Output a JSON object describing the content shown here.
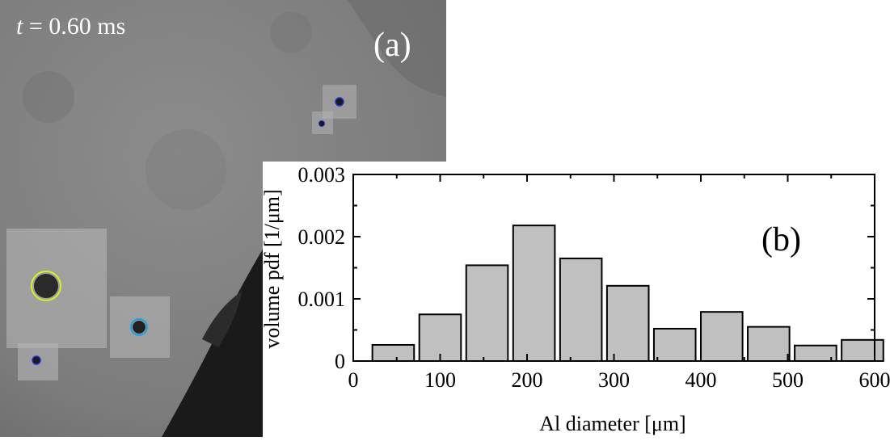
{
  "panel_a": {
    "time_var": "t",
    "time_rest": " = 0.60 ms",
    "label": "(a)",
    "colors": {
      "particle_blue": "#2430d8",
      "particle_cyan": "#1aa0e6",
      "particle_yellow": "#d8f020"
    }
  },
  "chart_data": {
    "type": "bar",
    "label": "(b)",
    "xlabel": "Al diameter [μm]",
    "ylabel": "volume pdf [1/μm]",
    "xlim": [
      0,
      600
    ],
    "ylim": [
      0,
      0.003
    ],
    "xticks": [
      0,
      100,
      200,
      300,
      400,
      500,
      600
    ],
    "yticks": [
      0,
      0.001,
      0.002,
      0.003
    ],
    "xtick_labels": [
      "0",
      "100",
      "200",
      "300",
      "400",
      "500",
      "600"
    ],
    "ytick_labels": [
      "0",
      "0.001",
      "0.002",
      "0.003"
    ],
    "bin_width": 48,
    "bin_centers": [
      46,
      100,
      154,
      208,
      262,
      316,
      370,
      424,
      478,
      532,
      586
    ],
    "values": [
      0.00026,
      0.00075,
      0.00154,
      0.00218,
      0.00165,
      0.00121,
      0.00052,
      0.00079,
      0.00055,
      0.00025,
      0.00034
    ],
    "bar_color": "#c0c0c0",
    "grid": false
  }
}
